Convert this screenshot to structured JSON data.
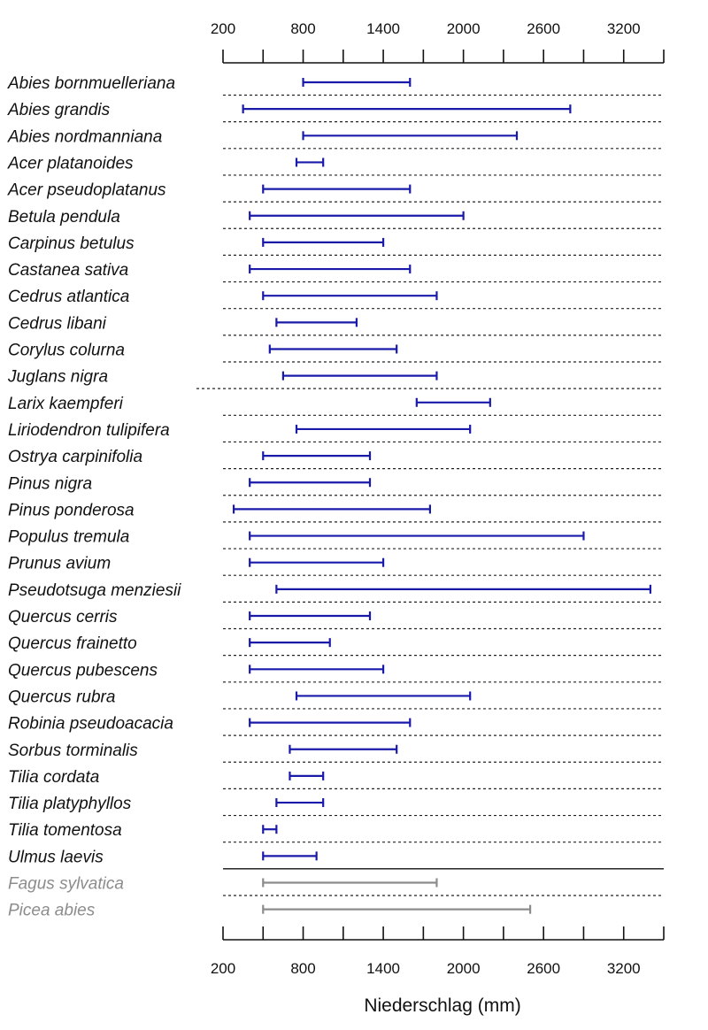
{
  "chart_data": {
    "type": "range",
    "xlabel": "Niederschlag (mm)",
    "xlim": [
      200,
      3500
    ],
    "x_ticks_labeled": [
      200,
      800,
      1400,
      2000,
      2600,
      3200
    ],
    "x_ticks_minor": [
      500,
      1100,
      1700,
      2300,
      2900,
      3500
    ],
    "colors": {
      "main": "#1a1aaa",
      "reference": "#8c8c8c",
      "axis": "#111111"
    },
    "species": [
      {
        "name": "Abies bornmuelleriana",
        "min": 800,
        "max": 1600,
        "group": "main"
      },
      {
        "name": "Abies grandis",
        "min": 350,
        "max": 2800,
        "group": "main"
      },
      {
        "name": "Abies nordmanniana",
        "min": 800,
        "max": 2400,
        "group": "main"
      },
      {
        "name": "Acer platanoides",
        "min": 750,
        "max": 950,
        "group": "main"
      },
      {
        "name": "Acer pseudoplatanus",
        "min": 500,
        "max": 1600,
        "group": "main"
      },
      {
        "name": "Betula pendula",
        "min": 400,
        "max": 2000,
        "group": "main"
      },
      {
        "name": "Carpinus betulus",
        "min": 500,
        "max": 1400,
        "group": "main"
      },
      {
        "name": "Castanea sativa",
        "min": 400,
        "max": 1600,
        "group": "main"
      },
      {
        "name": "Cedrus atlantica",
        "min": 500,
        "max": 1800,
        "group": "main"
      },
      {
        "name": "Cedrus libani",
        "min": 600,
        "max": 1200,
        "group": "main"
      },
      {
        "name": "Corylus colurna",
        "min": 550,
        "max": 1500,
        "group": "main"
      },
      {
        "name": "Juglans nigra",
        "min": 650,
        "max": 1800,
        "group": "main"
      },
      {
        "name": "Larix kaempferi",
        "min": 1650,
        "max": 2200,
        "group": "main"
      },
      {
        "name": "Liriodendron tulipifera",
        "min": 750,
        "max": 2050,
        "group": "main"
      },
      {
        "name": "Ostrya carpinifolia",
        "min": 500,
        "max": 1300,
        "group": "main"
      },
      {
        "name": "Pinus nigra",
        "min": 400,
        "max": 1300,
        "group": "main"
      },
      {
        "name": "Pinus ponderosa",
        "min": 280,
        "max": 1750,
        "group": "main"
      },
      {
        "name": "Populus tremula",
        "min": 400,
        "max": 2900,
        "group": "main"
      },
      {
        "name": "Prunus avium",
        "min": 400,
        "max": 1400,
        "group": "main"
      },
      {
        "name": "Pseudotsuga menziesii",
        "min": 600,
        "max": 3400,
        "group": "main"
      },
      {
        "name": "Quercus cerris",
        "min": 400,
        "max": 1300,
        "group": "main"
      },
      {
        "name": "Quercus frainetto",
        "min": 400,
        "max": 1000,
        "group": "main"
      },
      {
        "name": "Quercus pubescens",
        "min": 400,
        "max": 1400,
        "group": "main"
      },
      {
        "name": "Quercus rubra",
        "min": 750,
        "max": 2050,
        "group": "main"
      },
      {
        "name": "Robinia pseudoacacia",
        "min": 400,
        "max": 1600,
        "group": "main"
      },
      {
        "name": "Sorbus torminalis",
        "min": 700,
        "max": 1500,
        "group": "main"
      },
      {
        "name": "Tilia cordata",
        "min": 700,
        "max": 950,
        "group": "main"
      },
      {
        "name": "Tilia platyphyllos",
        "min": 600,
        "max": 950,
        "group": "main"
      },
      {
        "name": "Tilia tomentosa",
        "min": 500,
        "max": 600,
        "group": "main"
      },
      {
        "name": "Ulmus laevis",
        "min": 500,
        "max": 900,
        "group": "main"
      },
      {
        "name": "Fagus sylvatica",
        "min": 500,
        "max": 1800,
        "group": "reference"
      },
      {
        "name": "Picea abies",
        "min": 500,
        "max": 2500,
        "group": "reference"
      }
    ]
  }
}
